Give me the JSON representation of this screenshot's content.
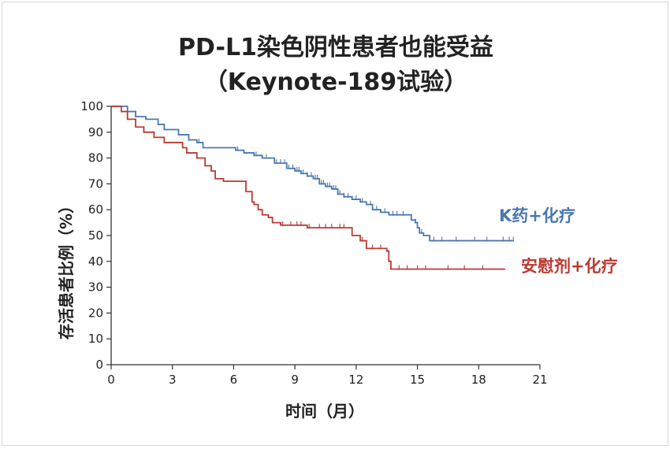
{
  "chart_data": {
    "type": "line",
    "title": "PD-L1染色阴性患者也能受益",
    "subtitle": "（Keynote-189试验）",
    "xlabel": "时间（月）",
    "ylabel": "存活患者比例（%）",
    "xlim": [
      0,
      21
    ],
    "ylim": [
      0,
      100
    ],
    "x_ticks": [
      0,
      3,
      6,
      9,
      12,
      15,
      18,
      21
    ],
    "y_ticks": [
      0,
      10,
      20,
      30,
      40,
      50,
      60,
      70,
      80,
      90,
      100
    ],
    "grid": false,
    "series": [
      {
        "name": "K药+化疗",
        "color": "#4a78b0",
        "points": [
          [
            0,
            100
          ],
          [
            0.6,
            100
          ],
          [
            0.8,
            98
          ],
          [
            1.2,
            96
          ],
          [
            1.7,
            95
          ],
          [
            2.3,
            93
          ],
          [
            2.6,
            91
          ],
          [
            3.3,
            89
          ],
          [
            3.8,
            87
          ],
          [
            4.2,
            86
          ],
          [
            4.5,
            84
          ],
          [
            5.9,
            84
          ],
          [
            6.1,
            83
          ],
          [
            6.5,
            82
          ],
          [
            7.0,
            81
          ],
          [
            7.4,
            80
          ],
          [
            8.0,
            78
          ],
          [
            8.6,
            76
          ],
          [
            9.0,
            75
          ],
          [
            9.3,
            74
          ],
          [
            9.6,
            73
          ],
          [
            9.9,
            72
          ],
          [
            10.2,
            70
          ],
          [
            10.5,
            69
          ],
          [
            10.8,
            68
          ],
          [
            11.1,
            66
          ],
          [
            11.4,
            65
          ],
          [
            11.8,
            64
          ],
          [
            12.2,
            63
          ],
          [
            12.5,
            62
          ],
          [
            12.8,
            60
          ],
          [
            13.2,
            59
          ],
          [
            13.6,
            58
          ],
          [
            14.6,
            58
          ],
          [
            14.7,
            56
          ],
          [
            14.9,
            55
          ],
          [
            15.0,
            53
          ],
          [
            15.1,
            51
          ],
          [
            15.3,
            50
          ],
          [
            15.6,
            48
          ],
          [
            19.7,
            48
          ]
        ],
        "censors": [
          4.3,
          6.2,
          7.1,
          7.6,
          8.1,
          8.3,
          8.5,
          8.7,
          8.9,
          9.1,
          9.2,
          9.4,
          9.6,
          9.8,
          10.0,
          10.1,
          10.3,
          10.4,
          10.6,
          10.7,
          10.9,
          11.0,
          11.2,
          11.4,
          11.6,
          12.0,
          12.3,
          12.7,
          13.0,
          13.4,
          13.8,
          14.0,
          14.3,
          14.9,
          15.2,
          15.8,
          16.2,
          16.9,
          17.8,
          18.4,
          19.2,
          19.5,
          19.7
        ]
      },
      {
        "name": "安慰剂+化疗",
        "color": "#bb3a32",
        "points": [
          [
            0,
            100
          ],
          [
            0.5,
            98
          ],
          [
            0.8,
            95
          ],
          [
            1.2,
            92
          ],
          [
            1.6,
            90
          ],
          [
            2.1,
            88
          ],
          [
            2.6,
            86
          ],
          [
            3.5,
            84
          ],
          [
            3.7,
            82
          ],
          [
            4.2,
            80
          ],
          [
            4.6,
            77
          ],
          [
            4.9,
            75
          ],
          [
            5.1,
            72
          ],
          [
            5.5,
            71
          ],
          [
            6.4,
            71
          ],
          [
            6.6,
            67
          ],
          [
            6.9,
            63
          ],
          [
            7.0,
            62
          ],
          [
            7.2,
            60
          ],
          [
            7.4,
            58
          ],
          [
            7.7,
            57
          ],
          [
            7.9,
            55
          ],
          [
            8.3,
            54
          ],
          [
            8.5,
            54
          ],
          [
            9.3,
            54
          ],
          [
            9.6,
            53
          ],
          [
            11.6,
            53
          ],
          [
            11.8,
            50
          ],
          [
            12.2,
            48
          ],
          [
            12.5,
            45
          ],
          [
            12.9,
            45
          ],
          [
            13.5,
            44
          ],
          [
            13.6,
            40
          ],
          [
            13.7,
            37
          ],
          [
            19.3,
            37
          ]
        ],
        "censors": [
          7.9,
          8.4,
          8.8,
          9.1,
          9.3,
          9.7,
          10.2,
          10.5,
          10.8,
          11.2,
          11.4,
          12.3,
          12.8,
          13.2,
          14.1,
          14.5,
          15.0,
          15.4,
          16.5,
          17.3,
          18.2
        ]
      }
    ]
  },
  "legend": {
    "k_label": "K药+化疗",
    "placebo_label": "安慰剂+化疗"
  }
}
